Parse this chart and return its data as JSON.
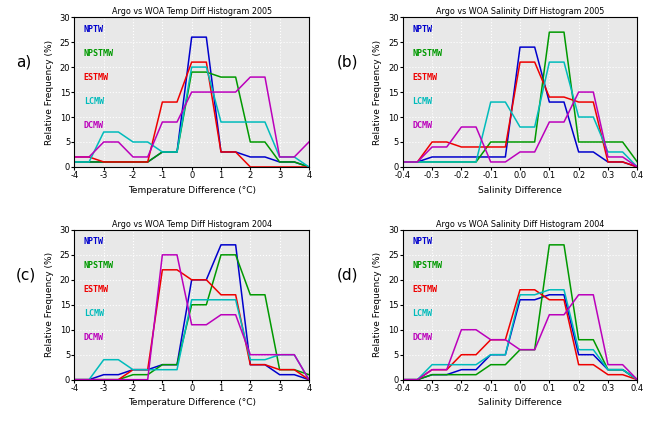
{
  "colors": {
    "NPTW": "#0000CC",
    "NPSTMW": "#009900",
    "ESTMW": "#EE0000",
    "LCMW": "#00BBBB",
    "DCMW": "#BB00BB"
  },
  "legend_labels": [
    "NPTW",
    "NPSTMW",
    "ESTMW",
    "LCMW",
    "DCMW"
  ],
  "titles": [
    "Argo vs WOA Temp Diff Histogram 2005",
    "Argo vs WOA Salinity Diff Histogram 2005",
    "Argo vs WOA Temp Diff Histogram 2004",
    "Argo vs WOA Salinity Diff Histogram 2004"
  ],
  "panel_texts": [
    "a)",
    "(b)",
    "(c)",
    "(d)"
  ],
  "temp_xlim": [
    -4,
    4
  ],
  "sal_xlim": [
    -0.4,
    0.4
  ],
  "ylim": [
    0,
    30
  ],
  "temp_xticks": [
    -4,
    -3,
    -2,
    -1,
    0,
    1,
    2,
    3,
    4
  ],
  "sal_xticks": [
    -0.4,
    -0.3,
    -0.2,
    -0.1,
    0.0,
    0.1,
    0.2,
    0.3,
    0.4
  ],
  "yticks": [
    0,
    5,
    10,
    15,
    20,
    25,
    30
  ],
  "temp_xlabel": "Temperature Difference (°C)",
  "sal_xlabel": "Salinity Difference",
  "ylabel": "Relative Frequency (%)",
  "panel_a": {
    "NPTW": {
      "x": [
        -4,
        -3.5,
        -3,
        -2.5,
        -2,
        -1.5,
        -1,
        -0.5,
        0,
        0.5,
        1,
        1.5,
        2,
        2.5,
        3,
        3.5,
        4
      ],
      "y": [
        1,
        1,
        1,
        1,
        1,
        1,
        3,
        3,
        26,
        26,
        3,
        3,
        2,
        2,
        1,
        1,
        0
      ]
    },
    "NPSTMW": {
      "x": [
        -4,
        -3.5,
        -3,
        -2.5,
        -2,
        -1.5,
        -1,
        -0.5,
        0,
        0.5,
        1,
        1.5,
        2,
        2.5,
        3,
        3.5,
        4
      ],
      "y": [
        1,
        1,
        1,
        1,
        1,
        1,
        3,
        3,
        19,
        19,
        18,
        18,
        5,
        5,
        1,
        1,
        0
      ]
    },
    "ESTMW": {
      "x": [
        -4,
        -3.5,
        -3,
        -2.5,
        -2,
        -1.5,
        -1,
        -0.5,
        0,
        0.5,
        1,
        1.5,
        2,
        2.5,
        3,
        3.5,
        4
      ],
      "y": [
        2,
        2,
        1,
        1,
        1,
        1,
        13,
        13,
        21,
        21,
        3,
        3,
        0,
        0,
        0,
        0,
        0
      ]
    },
    "LCMW": {
      "x": [
        -4,
        -3.5,
        -3,
        -2.5,
        -2,
        -1.5,
        -1,
        -0.5,
        0,
        0.5,
        1,
        1.5,
        2,
        2.5,
        3,
        3.5,
        4
      ],
      "y": [
        1,
        1,
        7,
        7,
        5,
        5,
        3,
        3,
        20,
        20,
        9,
        9,
        9,
        9,
        2,
        2,
        0
      ]
    },
    "DCMW": {
      "x": [
        -4,
        -3.5,
        -3,
        -2.5,
        -2,
        -1.5,
        -1,
        -0.5,
        0,
        0.5,
        1,
        1.5,
        2,
        2.5,
        3,
        3.5,
        4
      ],
      "y": [
        2,
        2,
        5,
        5,
        2,
        2,
        9,
        9,
        15,
        15,
        15,
        15,
        18,
        18,
        2,
        2,
        5
      ]
    }
  },
  "panel_b": {
    "NPTW": {
      "x": [
        -0.4,
        -0.35,
        -0.3,
        -0.25,
        -0.2,
        -0.15,
        -0.1,
        -0.05,
        0.0,
        0.05,
        0.1,
        0.15,
        0.2,
        0.25,
        0.3,
        0.35,
        0.4
      ],
      "y": [
        1,
        1,
        2,
        2,
        2,
        2,
        2,
        2,
        24,
        24,
        13,
        13,
        3,
        3,
        1,
        1,
        0
      ]
    },
    "NPSTMW": {
      "x": [
        -0.4,
        -0.35,
        -0.3,
        -0.25,
        -0.2,
        -0.15,
        -0.1,
        -0.05,
        0.0,
        0.05,
        0.1,
        0.15,
        0.2,
        0.25,
        0.3,
        0.35,
        0.4
      ],
      "y": [
        1,
        1,
        1,
        1,
        1,
        1,
        5,
        5,
        5,
        5,
        27,
        27,
        5,
        5,
        5,
        5,
        1
      ]
    },
    "ESTMW": {
      "x": [
        -0.4,
        -0.35,
        -0.3,
        -0.25,
        -0.2,
        -0.15,
        -0.1,
        -0.05,
        0.0,
        0.05,
        0.1,
        0.15,
        0.2,
        0.25,
        0.3,
        0.35,
        0.4
      ],
      "y": [
        1,
        1,
        5,
        5,
        4,
        4,
        4,
        4,
        21,
        21,
        14,
        14,
        13,
        13,
        1,
        1,
        0
      ]
    },
    "LCMW": {
      "x": [
        -0.4,
        -0.35,
        -0.3,
        -0.25,
        -0.2,
        -0.15,
        -0.1,
        -0.05,
        0.0,
        0.05,
        0.1,
        0.15,
        0.2,
        0.25,
        0.3,
        0.35,
        0.4
      ],
      "y": [
        1,
        1,
        1,
        1,
        1,
        1,
        13,
        13,
        8,
        8,
        21,
        21,
        10,
        10,
        3,
        3,
        0
      ]
    },
    "DCMW": {
      "x": [
        -0.4,
        -0.35,
        -0.3,
        -0.25,
        -0.2,
        -0.15,
        -0.1,
        -0.05,
        0.0,
        0.05,
        0.1,
        0.15,
        0.2,
        0.25,
        0.3,
        0.35,
        0.4
      ],
      "y": [
        1,
        1,
        4,
        4,
        8,
        8,
        1,
        1,
        3,
        3,
        9,
        9,
        15,
        15,
        2,
        2,
        0
      ]
    }
  },
  "panel_c": {
    "NPTW": {
      "x": [
        -4,
        -3.5,
        -3,
        -2.5,
        -2,
        -1.5,
        -1,
        -0.5,
        0,
        0.5,
        1,
        1.5,
        2,
        2.5,
        3,
        3.5,
        4
      ],
      "y": [
        0,
        0,
        1,
        1,
        2,
        2,
        3,
        3,
        20,
        20,
        27,
        27,
        3,
        3,
        1,
        1,
        0
      ]
    },
    "NPSTMW": {
      "x": [
        -4,
        -3.5,
        -3,
        -2.5,
        -2,
        -1.5,
        -1,
        -0.5,
        0,
        0.5,
        1,
        1.5,
        2,
        2.5,
        3,
        3.5,
        4
      ],
      "y": [
        0,
        0,
        0,
        0,
        1,
        1,
        3,
        3,
        15,
        15,
        25,
        25,
        17,
        17,
        2,
        2,
        1
      ]
    },
    "ESTMW": {
      "x": [
        -4,
        -3.5,
        -3,
        -2.5,
        -2,
        -1.5,
        -1,
        -0.5,
        0,
        0.5,
        1,
        1.5,
        2,
        2.5,
        3,
        3.5,
        4
      ],
      "y": [
        0,
        0,
        0,
        0,
        2,
        2,
        22,
        22,
        20,
        20,
        17,
        17,
        3,
        3,
        2,
        2,
        0
      ]
    },
    "LCMW": {
      "x": [
        -4,
        -3.5,
        -3,
        -2.5,
        -2,
        -1.5,
        -1,
        -0.5,
        0,
        0.5,
        1,
        1.5,
        2,
        2.5,
        3,
        3.5,
        4
      ],
      "y": [
        0,
        0,
        4,
        4,
        2,
        2,
        2,
        2,
        16,
        16,
        16,
        16,
        4,
        4,
        5,
        5,
        0
      ]
    },
    "DCMW": {
      "x": [
        -4,
        -3.5,
        -3,
        -2.5,
        -2,
        -1.5,
        -1,
        -0.5,
        0,
        0.5,
        1,
        1.5,
        2,
        2.5,
        3,
        3.5,
        4
      ],
      "y": [
        0,
        0,
        0,
        0,
        0,
        0,
        25,
        25,
        11,
        11,
        13,
        13,
        5,
        5,
        5,
        5,
        0
      ]
    }
  },
  "panel_d": {
    "NPTW": {
      "x": [
        -0.4,
        -0.35,
        -0.3,
        -0.25,
        -0.2,
        -0.15,
        -0.1,
        -0.05,
        0.0,
        0.05,
        0.1,
        0.15,
        0.2,
        0.25,
        0.3,
        0.35,
        0.4
      ],
      "y": [
        0,
        0,
        1,
        1,
        2,
        2,
        5,
        5,
        16,
        16,
        17,
        17,
        5,
        5,
        2,
        2,
        0
      ]
    },
    "NPSTMW": {
      "x": [
        -0.4,
        -0.35,
        -0.3,
        -0.25,
        -0.2,
        -0.15,
        -0.1,
        -0.05,
        0.0,
        0.05,
        0.1,
        0.15,
        0.2,
        0.25,
        0.3,
        0.35,
        0.4
      ],
      "y": [
        0,
        0,
        1,
        1,
        1,
        1,
        3,
        3,
        6,
        6,
        27,
        27,
        8,
        8,
        2,
        2,
        0
      ]
    },
    "ESTMW": {
      "x": [
        -0.4,
        -0.35,
        -0.3,
        -0.25,
        -0.2,
        -0.15,
        -0.1,
        -0.05,
        0.0,
        0.05,
        0.1,
        0.15,
        0.2,
        0.25,
        0.3,
        0.35,
        0.4
      ],
      "y": [
        0,
        0,
        2,
        2,
        5,
        5,
        8,
        8,
        18,
        18,
        16,
        16,
        3,
        3,
        1,
        1,
        0
      ]
    },
    "LCMW": {
      "x": [
        -0.4,
        -0.35,
        -0.3,
        -0.25,
        -0.2,
        -0.15,
        -0.1,
        -0.05,
        0.0,
        0.05,
        0.1,
        0.15,
        0.2,
        0.25,
        0.3,
        0.35,
        0.4
      ],
      "y": [
        0,
        0,
        3,
        3,
        3,
        3,
        5,
        5,
        17,
        17,
        18,
        18,
        6,
        6,
        2,
        2,
        0
      ]
    },
    "DCMW": {
      "x": [
        -0.4,
        -0.35,
        -0.3,
        -0.25,
        -0.2,
        -0.15,
        -0.1,
        -0.05,
        0.0,
        0.05,
        0.1,
        0.15,
        0.2,
        0.25,
        0.3,
        0.35,
        0.4
      ],
      "y": [
        0,
        0,
        2,
        2,
        10,
        10,
        8,
        8,
        6,
        6,
        13,
        13,
        17,
        17,
        3,
        3,
        0
      ]
    }
  }
}
